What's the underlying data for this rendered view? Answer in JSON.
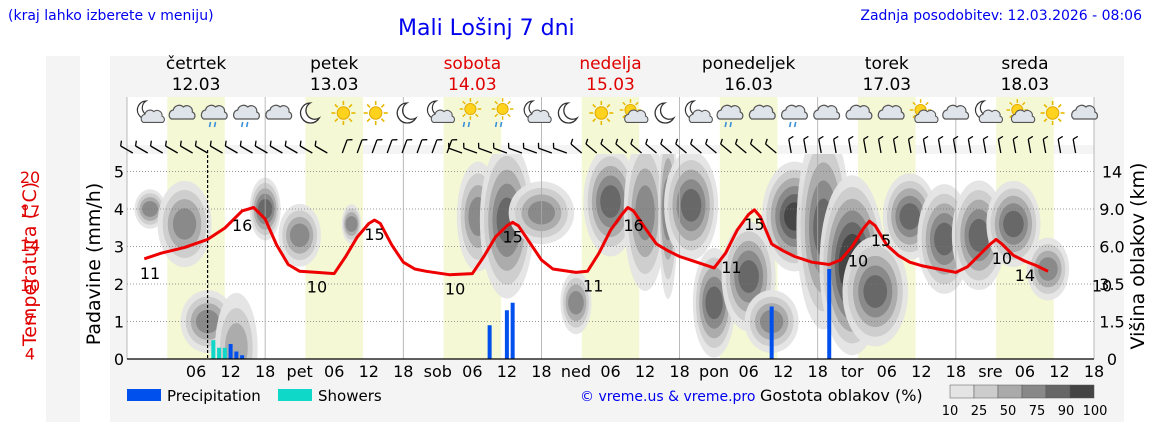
{
  "header": {
    "hint": "(kraj lahko izberete v meniju)",
    "title": "Mali Lošinj 7 dni",
    "updated": "Zadnja posodobitev: 12.03.2026 - 08:06"
  },
  "colors": {
    "weekday": "#000000",
    "weekend": "#e00000",
    "temp_line": "#ee0000",
    "precip": "#0050ee",
    "showers": "#10d8c8",
    "link": "#0000ee",
    "day_band": "#f4f8d4",
    "panel": "#f4f4f4"
  },
  "days": [
    {
      "name": "četrtek",
      "date": "12.03",
      "weekend": false
    },
    {
      "name": "petek",
      "date": "13.03",
      "weekend": false
    },
    {
      "name": "sobota",
      "date": "14.03",
      "weekend": true
    },
    {
      "name": "nedelja",
      "date": "15.03",
      "weekend": true
    },
    {
      "name": "ponedeljek",
      "date": "16.03",
      "weekend": false
    },
    {
      "name": "torek",
      "date": "17.03",
      "weekend": false
    },
    {
      "name": "sreda",
      "date": "18.03",
      "weekend": false
    }
  ],
  "x_axis": {
    "ticks": [
      "06",
      "12",
      "18",
      "pet",
      "06",
      "12",
      "18",
      "sob",
      "06",
      "12",
      "18",
      "ned",
      "06",
      "12",
      "18",
      "pon",
      "06",
      "12",
      "18",
      "tor",
      "06",
      "12",
      "18",
      "sre",
      "06",
      "12",
      "18"
    ]
  },
  "weather_icons": [
    "moon-cloud-icon",
    "cloud-icon",
    "rain-cloud-icon",
    "rain-cloud-icon",
    "cloud-icon",
    "moon-icon",
    "sun-icon",
    "sun-icon",
    "moon-icon",
    "moon-cloud-icon",
    "sun-rain-icon",
    "sun-rain-icon",
    "moon-cloud-icon",
    "moon-icon",
    "sun-icon",
    "sun-cloud-icon",
    "moon-icon",
    "moon-cloud-icon",
    "rain-cloud-icon",
    "cloud-icon",
    "rain-cloud-icon",
    "cloud-icon",
    "cloud-icon",
    "cloud-icon",
    "sun-cloud-icon",
    "cloud-icon",
    "moon-cloud-icon",
    "sun-cloud-icon",
    "sun-icon",
    "cloud-icon"
  ],
  "legend": {
    "precip": "Precipitation",
    "showers": "Showers",
    "copyright": "© vreme.us & vreme.pro",
    "cloud_density": "Gostota oblakov (%)",
    "density_levels": [
      "10",
      "25",
      "50",
      "75",
      "90",
      "100"
    ],
    "density_colors": [
      "#e4e4e4",
      "#cccccc",
      "#aaaaaa",
      "#888888",
      "#666666",
      "#444444"
    ]
  },
  "chart_data": {
    "type": "line",
    "title": "Mali Lošinj 7 dni",
    "hours_span": [
      0,
      168
    ],
    "temperature": {
      "ylabel": "Temperatura (°C)",
      "ylim": [
        3.5,
        21.5
      ],
      "ticks": [
        "4",
        "7",
        "10",
        "14",
        "17",
        "20"
      ],
      "tick_values": [
        4,
        7,
        10,
        13.5,
        16.5,
        19.5
      ],
      "points": [
        [
          -3,
          12.3
        ],
        [
          0,
          12.8
        ],
        [
          4,
          13.3
        ],
        [
          8,
          14.0
        ],
        [
          11,
          15.0
        ],
        [
          14,
          16.5
        ],
        [
          16,
          16.8
        ],
        [
          18,
          15.8
        ],
        [
          20,
          13.5
        ],
        [
          22,
          11.8
        ],
        [
          24,
          11.2
        ],
        [
          27,
          11.1
        ],
        [
          30,
          11.0
        ],
        [
          32,
          12.5
        ],
        [
          34,
          14.2
        ],
        [
          36,
          15.4
        ],
        [
          37,
          15.7
        ],
        [
          38,
          15.4
        ],
        [
          40,
          13.5
        ],
        [
          42,
          12.0
        ],
        [
          44,
          11.4
        ],
        [
          46,
          11.2
        ],
        [
          50,
          10.9
        ],
        [
          54,
          11.0
        ],
        [
          56,
          12.5
        ],
        [
          58,
          14.2
        ],
        [
          60,
          15.2
        ],
        [
          61,
          15.5
        ],
        [
          62,
          15.2
        ],
        [
          64,
          13.7
        ],
        [
          66,
          12.2
        ],
        [
          68,
          11.4
        ],
        [
          72,
          11.1
        ],
        [
          74,
          11.2
        ],
        [
          76,
          12.8
        ],
        [
          78,
          14.8
        ],
        [
          80,
          16.2
        ],
        [
          81,
          16.8
        ],
        [
          82,
          16.5
        ],
        [
          84,
          15.0
        ],
        [
          86,
          13.6
        ],
        [
          88,
          13.0
        ],
        [
          90,
          12.5
        ],
        [
          93,
          12.0
        ],
        [
          96,
          11.5
        ],
        [
          98,
          12.8
        ],
        [
          100,
          14.8
        ],
        [
          102,
          16.2
        ],
        [
          103,
          16.6
        ],
        [
          104,
          16.0
        ],
        [
          106,
          13.6
        ],
        [
          108,
          13.0
        ],
        [
          110,
          12.5
        ],
        [
          113,
          12.0
        ],
        [
          116,
          11.8
        ],
        [
          118,
          12.2
        ],
        [
          120,
          13.4
        ],
        [
          122,
          15.0
        ],
        [
          123,
          15.6
        ],
        [
          124,
          15.2
        ],
        [
          126,
          13.5
        ],
        [
          128,
          12.6
        ],
        [
          130,
          12.0
        ],
        [
          132,
          11.7
        ],
        [
          136,
          11.3
        ],
        [
          138,
          11.1
        ],
        [
          140,
          11.6
        ],
        [
          142,
          12.6
        ],
        [
          144,
          13.6
        ],
        [
          145,
          14.0
        ],
        [
          146,
          13.6
        ],
        [
          148,
          12.6
        ],
        [
          150,
          12.1
        ],
        [
          152,
          11.7
        ],
        [
          154,
          11.2
        ]
      ]
    },
    "temp_labels": [
      {
        "hour": -2,
        "value": "11"
      },
      {
        "hour": 14,
        "value": "16"
      },
      {
        "hour": 27,
        "value": "10"
      },
      {
        "hour": 37,
        "value": "15"
      },
      {
        "hour": 51,
        "value": "10"
      },
      {
        "hour": 61,
        "value": "15"
      },
      {
        "hour": 75,
        "value": "11"
      },
      {
        "hour": 82,
        "value": "16"
      },
      {
        "hour": 99,
        "value": "11"
      },
      {
        "hour": 103,
        "value": "15"
      },
      {
        "hour": 121,
        "value": "10"
      },
      {
        "hour": 125,
        "value": "15"
      },
      {
        "hour": 146,
        "value": "10"
      },
      {
        "hour": 150,
        "value": "14"
      },
      {
        "hour": 168,
        "value": "10"
      }
    ],
    "precipitation": {
      "ylabel": "Padavine (mm/h)",
      "ylim": [
        0,
        5.5
      ],
      "ticks": [
        "0",
        "1",
        "2",
        "3",
        "4",
        "5"
      ],
      "tick_values": [
        0,
        1,
        2,
        3,
        4,
        5
      ],
      "precip_bars": [
        [
          12,
          0.4
        ],
        [
          13,
          0.2
        ],
        [
          14,
          0.1
        ],
        [
          57,
          0.9
        ],
        [
          60,
          1.3
        ],
        [
          61,
          1.5
        ],
        [
          106,
          1.4
        ],
        [
          116,
          2.4
        ]
      ],
      "shower_bars": [
        [
          9,
          0.5
        ],
        [
          10,
          0.3
        ],
        [
          11,
          0.3
        ]
      ]
    },
    "cloud_altitude": {
      "ylabel": "Višina oblakov (km)",
      "ticks": [
        "0",
        "1.5",
        "3.5",
        "6.0",
        "9.0",
        "14"
      ],
      "tick_values": [
        0,
        1,
        2,
        3,
        4,
        5
      ]
    }
  }
}
